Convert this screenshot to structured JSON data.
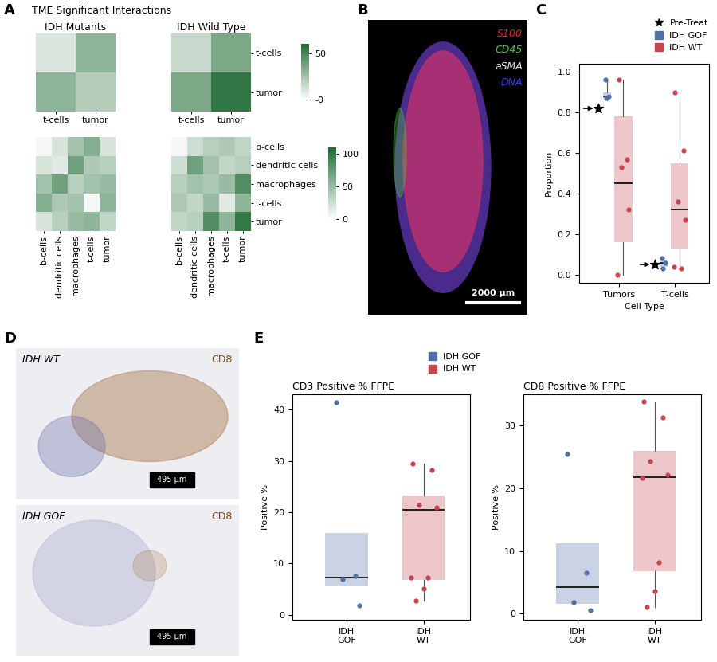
{
  "chart_data": [
    {
      "type": "heatmap",
      "panel": "A",
      "title": "TME Significant Interactions",
      "subtitles": [
        "IDH Mutants",
        "IDH Wild Type"
      ],
      "rows": [
        "t-cells",
        "tumor"
      ],
      "columns": [
        "t-cells",
        "tumor"
      ],
      "cells": [
        [
          [
            10,
            30
          ],
          [
            30,
            20
          ]
        ],
        [
          [
            15,
            35
          ],
          [
            35,
            55
          ]
        ]
      ],
      "colorbar_range": [
        0,
        60
      ],
      "colorbar_ticks": [
        {
          "value": 0,
          "label": "-0"
        },
        50
      ],
      "color": "#1f6b35"
    },
    {
      "type": "heatmap",
      "rows": [
        "b-cells",
        "dendritic cells",
        "macrophages",
        "t-cells",
        "tumor"
      ],
      "columns": [
        "b-cells",
        "dendritic cells",
        "macrophages",
        "t-cells",
        "tumor"
      ],
      "cells": [
        [
          [
            5,
            20,
            45,
            60,
            20
          ],
          [
            20,
            15,
            70,
            40,
            35
          ],
          [
            45,
            70,
            35,
            45,
            50
          ],
          [
            60,
            40,
            45,
            5,
            55
          ],
          [
            20,
            35,
            50,
            55,
            30
          ]
        ],
        [
          [
            5,
            25,
            35,
            40,
            30
          ],
          [
            25,
            70,
            45,
            30,
            35
          ],
          [
            35,
            45,
            40,
            50,
            85
          ],
          [
            40,
            30,
            50,
            15,
            55
          ],
          [
            30,
            35,
            85,
            55,
            100
          ]
        ]
      ],
      "colorbar_range": [
        0,
        110
      ],
      "colorbar_ticks": [
        0,
        50,
        100
      ],
      "color": "#1f6b35"
    },
    {
      "type": "image",
      "panel": "B",
      "labels": [
        "S100",
        "CD45",
        "aSMA",
        "DNA"
      ],
      "colors": [
        "#e8242a",
        "#4ccb3a",
        "#e6e6e6",
        "#3a3ae8"
      ],
      "scale_bar": "2000 µm"
    },
    {
      "type": "box",
      "panel": "C",
      "categories": [
        "Tumors",
        "T-cells"
      ],
      "x_label": "Cell Type",
      "y_label": "Proportion",
      "ylim": [
        -0.04,
        1.04
      ],
      "yticks": [
        {
          "value": 0,
          "label": "0.0"
        },
        {
          "value": 0.2,
          "label": "0.2"
        },
        {
          "value": 0.4,
          "label": "0.4"
        },
        {
          "value": 0.6,
          "label": "0.6"
        },
        {
          "value": 0.8,
          "label": "0.8"
        },
        {
          "value": 1,
          "label": "1.0"
        }
      ],
      "legend": "upper right",
      "series": [
        {
          "name": "Pre-Treat",
          "marker": "star",
          "color": "#000000",
          "values": [
            0.82,
            0.05
          ]
        },
        {
          "name": "IDH GOF",
          "color": "#4f6fa8",
          "boxes": [
            {
              "whislo": 0.86,
              "q1": 0.87,
              "median": 0.88,
              "q3": 0.9,
              "whishi": 0.96
            },
            {
              "whislo": 0.03,
              "q1": 0.04,
              "median": 0.06,
              "q3": 0.07,
              "whishi": 0.08
            }
          ],
          "values": [
            [
              0.96,
              0.88,
              0.87
            ],
            [
              0.08,
              0.06,
              0.03
            ]
          ]
        },
        {
          "name": "IDH WT",
          "color": "#c4444f",
          "boxes": [
            {
              "whislo": 0.0,
              "q1": 0.16,
              "median": 0.45,
              "q3": 0.78,
              "whishi": 0.96
            },
            {
              "whislo": 0.03,
              "q1": 0.13,
              "median": 0.32,
              "q3": 0.55,
              "whishi": 0.9
            }
          ],
          "values": [
            [
              0.96,
              0.57,
              0.53,
              0.32,
              0.0
            ],
            [
              0.9,
              0.61,
              0.36,
              0.27,
              0.04,
              0.03
            ]
          ]
        }
      ]
    },
    {
      "type": "image",
      "panel": "D",
      "images": [
        {
          "label": "IDH WT",
          "stain": "CD8",
          "scale_bar": "495 µm"
        },
        {
          "label": "IDH GOF",
          "stain": "CD8",
          "scale_bar": "495 µm"
        }
      ]
    },
    {
      "type": "box",
      "panel": "E",
      "title": "CD3 Positive % FFPE",
      "y_label": "Positive %",
      "categories": [
        "IDH\nGOF",
        "IDH\nWT"
      ],
      "ylim": [
        -1,
        43
      ],
      "yticks": [
        0,
        10,
        20,
        30,
        40
      ],
      "legend": "upper right",
      "series": [
        {
          "name": "IDH GOF",
          "color": "#4f6fa8",
          "boxes": [
            {
              "whislo": 5.6,
              "q1": 5.6,
              "median": 7.3,
              "q3": 16,
              "whishi": 16
            },
            null
          ],
          "values": [
            [
              41.5,
              7.6,
              7.0,
              1.8
            ],
            []
          ]
        },
        {
          "name": "IDH WT",
          "color": "#c4444f",
          "boxes": [
            null,
            {
              "whislo": 2.7,
              "q1": 6.8,
              "median": 20.5,
              "q3": 23.2,
              "whishi": 29.5
            }
          ],
          "values": [
            [],
            [
              29.5,
              28.3,
              21.4,
              20.9,
              7.3,
              7.3,
              5.0,
              2.7
            ]
          ]
        }
      ]
    },
    {
      "type": "box",
      "title": "CD8 Positive % FFPE",
      "y_label": "Positive %",
      "categories": [
        "IDH\nGOF",
        "IDH\nWT"
      ],
      "ylim": [
        -1,
        35
      ],
      "yticks": [
        0,
        10,
        20,
        30
      ],
      "series": [
        {
          "color": "#4f6fa8",
          "boxes": [
            {
              "whislo": 1.6,
              "q1": 1.6,
              "median": 4.2,
              "q3": 11.2,
              "whishi": 11.2
            },
            null
          ],
          "values": [
            [
              25.5,
              6.5,
              1.8,
              0.5
            ],
            []
          ]
        },
        {
          "color": "#c4444f",
          "boxes": [
            null,
            {
              "whislo": 1.0,
              "q1": 6.8,
              "median": 21.8,
              "q3": 26,
              "whishi": 33.8
            }
          ],
          "values": [
            [],
            [
              33.8,
              31.3,
              24.3,
              22.2,
              21.7,
              8.1,
              3.6,
              1.0
            ]
          ]
        }
      ]
    }
  ]
}
